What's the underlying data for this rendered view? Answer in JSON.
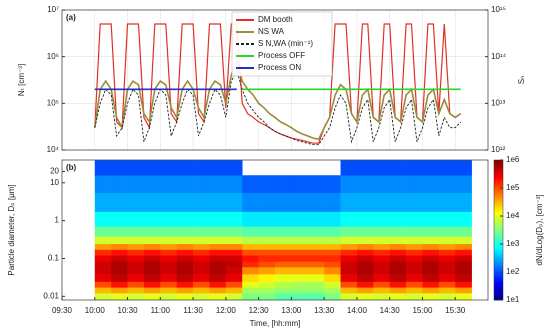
{
  "chart_data": [
    {
      "type": "line",
      "panel_label": "(a)",
      "ylabel": "Nₜ [cm⁻³]",
      "y2label": "Sₙ",
      "xlim": [
        "09:30",
        "16:00"
      ],
      "ylim": [
        10000,
        10000000
      ],
      "y2lim": [
        1000000000000,
        1000000000000000
      ],
      "log": true,
      "grid": true,
      "legend": "upper center",
      "yticks": [
        {
          "value": 10000,
          "label": "10⁴"
        },
        {
          "value": 100000,
          "label": "10⁵"
        },
        {
          "value": 1000000,
          "label": "10⁶"
        },
        {
          "value": 10000000,
          "label": "10⁷"
        }
      ],
      "y2ticks": [
        {
          "value": 1000000000000,
          "label": "10¹²"
        },
        {
          "value": 10000000000000,
          "label": "10¹³"
        },
        {
          "value": 100000000000000,
          "label": "10¹⁴"
        },
        {
          "value": 1000000000000000,
          "label": "10¹⁵"
        }
      ],
      "x": [
        "10:00",
        "10:05",
        "10:10",
        "10:15",
        "10:20",
        "10:25",
        "10:30",
        "10:35",
        "10:40",
        "10:45",
        "10:50",
        "10:55",
        "11:00",
        "11:05",
        "11:10",
        "11:15",
        "11:20",
        "11:25",
        "11:30",
        "11:35",
        "11:40",
        "11:45",
        "11:50",
        "11:55",
        "12:00",
        "12:05",
        "12:10",
        "12:15",
        "12:20",
        "12:25",
        "12:30",
        "12:35",
        "12:40",
        "12:45",
        "12:50",
        "12:55",
        "13:00",
        "13:05",
        "13:10",
        "13:15",
        "13:20",
        "13:25",
        "13:30",
        "13:35",
        "13:40",
        "13:45",
        "13:50",
        "13:55",
        "14:00",
        "14:05",
        "14:10",
        "14:15",
        "14:20",
        "14:25",
        "14:30",
        "14:35",
        "14:40",
        "14:45",
        "14:50",
        "14:55",
        "15:00",
        "15:05",
        "15:10",
        "15:15",
        "15:20",
        "15:25",
        "15:30",
        "15:35"
      ],
      "series": [
        {
          "name": "DM booth",
          "color": "#e03028",
          "width": 1.2,
          "values": [
            30000.0,
            5000000.0,
            5000000.0,
            5000000.0,
            40000.0,
            30000.0,
            5000000.0,
            5000000.0,
            5000000.0,
            50000.0,
            30000.0,
            5000000.0,
            5000000.0,
            5000000.0,
            60000.0,
            40000.0,
            5000000.0,
            5000000.0,
            5000000.0,
            60000.0,
            40000.0,
            5000000.0,
            5000000.0,
            5000000.0,
            80000.0,
            5000000.0,
            5000000.0,
            100000.0,
            60000.0,
            50000.0,
            40000.0,
            35000.0,
            30000.0,
            25000.0,
            22000.0,
            20000.0,
            18000.0,
            17000.0,
            16000.0,
            15000.0,
            14000.0,
            14000.0,
            30000.0,
            50000.0,
            5000000.0,
            5000000.0,
            5000000.0,
            60000.0,
            40000.0,
            5000000.0,
            5000000.0,
            50000.0,
            40000.0,
            5000000.0,
            5000000.0,
            50000.0,
            40000.0,
            5000000.0,
            5000000.0,
            50000.0,
            40000.0,
            5000000.0,
            5000000.0,
            60000.0,
            5000000.0,
            60000.0,
            50000.0,
            60000.0
          ]
        },
        {
          "name": "NS WA",
          "color": "#9c8a3a",
          "width": 1.6,
          "values": [
            30000.0,
            200000.0,
            300000.0,
            200000.0,
            50000.0,
            30000.0,
            200000.0,
            300000.0,
            250000.0,
            60000.0,
            40000.0,
            200000.0,
            300000.0,
            250000.0,
            80000.0,
            50000.0,
            200000.0,
            300000.0,
            200000.0,
            80000.0,
            50000.0,
            200000.0,
            300000.0,
            250000.0,
            100000.0,
            400000.0,
            800000.0,
            300000.0,
            200000.0,
            150000.0,
            100000.0,
            80000.0,
            60000.0,
            50000.0,
            40000.0,
            35000.0,
            30000.0,
            25000.0,
            22000.0,
            20000.0,
            18000.0,
            17000.0,
            30000.0,
            50000.0,
            150000.0,
            250000.0,
            200000.0,
            60000.0,
            40000.0,
            150000.0,
            200000.0,
            50000.0,
            40000.0,
            150000.0,
            200000.0,
            50000.0,
            40000.0,
            150000.0,
            200000.0,
            50000.0,
            40000.0,
            150000.0,
            200000.0,
            60000.0,
            120000.0,
            60000.0,
            50000.0,
            60000.0
          ]
        },
        {
          "name": "S N,WA (min⁻¹)",
          "color": "#222222",
          "width": 0.9,
          "dash": true,
          "axis": "y2",
          "values": [
            3000000000000.0,
            10000000000000.0,
            20000000000000.0,
            15000000000000.0,
            2000000000000.0,
            3000000000000.0,
            10000000000000.0,
            20000000000000.0,
            15000000000000.0,
            1500000000000.0,
            3000000000000.0,
            10000000000000.0,
            20000000000000.0,
            15000000000000.0,
            2000000000000.0,
            4000000000000.0,
            10000000000000.0,
            20000000000000.0,
            15000000000000.0,
            2000000000000.0,
            4000000000000.0,
            10000000000000.0,
            20000000000000.0,
            15000000000000.0,
            5000000000000.0,
            30000000000000.0,
            50000000000000.0,
            20000000000000.0,
            10000000000000.0,
            7000000000000.0,
            5000000000000.0,
            4000000000000.0,
            3000000000000.0,
            2500000000000.0,
            2200000000000.0,
            2000000000000.0,
            1800000000000.0,
            1600000000000.0,
            1500000000000.0,
            1400000000000.0,
            1300000000000.0,
            1300000000000.0,
            2000000000000.0,
            3000000000000.0,
            8000000000000.0,
            15000000000000.0,
            10000000000000.0,
            1500000000000.0,
            3000000000000.0,
            8000000000000.0,
            12000000000000.0,
            1500000000000.0,
            3000000000000.0,
            8000000000000.0,
            12000000000000.0,
            1500000000000.0,
            3000000000000.0,
            8000000000000.0,
            12000000000000.0,
            1500000000000.0,
            3000000000000.0,
            8000000000000.0,
            12000000000000.0,
            2000000000000.0,
            5000000000000.0,
            3000000000000.0,
            3000000000000.0,
            4000000000000.0
          ]
        },
        {
          "name": "Process OFF",
          "color": "#2ad62a",
          "width": 1.6,
          "values": [
            null,
            null,
            null,
            null,
            null,
            null,
            null,
            null,
            null,
            null,
            null,
            null,
            null,
            null,
            null,
            null,
            null,
            null,
            null,
            null,
            null,
            null,
            null,
            null,
            null,
            null,
            null,
            200000.0,
            200000.0,
            200000.0,
            200000.0,
            200000.0,
            200000.0,
            200000.0,
            200000.0,
            200000.0,
            200000.0,
            200000.0,
            200000.0,
            200000.0,
            200000.0,
            200000.0,
            200000.0,
            200000.0,
            200000.0,
            200000.0,
            200000.0,
            200000.0,
            200000.0,
            200000.0,
            200000.0,
            200000.0,
            200000.0,
            200000.0,
            200000.0,
            200000.0,
            200000.0,
            200000.0,
            200000.0,
            200000.0,
            200000.0,
            200000.0,
            200000.0,
            200000.0,
            200000.0,
            200000.0,
            200000.0,
            200000.0
          ]
        },
        {
          "name": "Process ON",
          "color": "#2430c0",
          "width": 1.6,
          "values": [
            200000.0,
            200000.0,
            200000.0,
            200000.0,
            200000.0,
            200000.0,
            200000.0,
            200000.0,
            200000.0,
            200000.0,
            200000.0,
            200000.0,
            200000.0,
            200000.0,
            200000.0,
            200000.0,
            200000.0,
            200000.0,
            200000.0,
            200000.0,
            200000.0,
            200000.0,
            200000.0,
            200000.0,
            200000.0,
            200000.0,
            200000.0,
            null,
            null,
            null,
            null,
            null,
            null,
            null,
            null,
            null,
            null,
            null,
            null,
            null,
            null,
            null,
            null,
            null,
            null,
            null,
            null,
            null,
            null,
            null,
            null,
            null,
            null,
            null,
            null,
            null,
            null,
            null,
            null,
            null,
            null,
            null,
            null,
            null,
            null,
            null,
            null,
            null
          ]
        }
      ]
    },
    {
      "type": "heatmap",
      "panel_label": "(b)",
      "xlabel": "Time, [hh:mm]",
      "ylabel": "Particle diameter, Dₚ [μm]",
      "colorbar_label": "dN/dLog(Dₚ), [cm⁻³]",
      "xlim": [
        "09:30",
        "16:00"
      ],
      "xticks": [
        "09:30",
        "10:00",
        "10:30",
        "11:00",
        "11:30",
        "12:00",
        "12:30",
        "13:00",
        "13:30",
        "14:00",
        "14:30",
        "15:00",
        "15:30"
      ],
      "ylim": [
        0.008,
        40
      ],
      "yticks": [
        0.01,
        0.1,
        1,
        10,
        20
      ],
      "log": true,
      "colormap": "jet",
      "clim": [
        10,
        1000000
      ],
      "cticks": [
        {
          "value": 10,
          "label": "1e1"
        },
        {
          "value": 100,
          "label": "1e2"
        },
        {
          "value": 1000,
          "label": "1e3"
        },
        {
          "value": 10000,
          "label": "1e4"
        },
        {
          "value": 100000,
          "label": "1e5"
        },
        {
          "value": 1000000,
          "label": "1e6"
        }
      ],
      "x": [
        "10:00",
        "10:15",
        "10:30",
        "10:45",
        "11:00",
        "11:15",
        "11:30",
        "11:45",
        "12:00",
        "12:15",
        "12:30",
        "12:45",
        "13:00",
        "13:15",
        "13:30",
        "13:45",
        "14:00",
        "14:15",
        "14:30",
        "14:45",
        "15:00",
        "15:15",
        "15:30"
      ],
      "y": [
        0.01,
        0.015,
        0.02,
        0.03,
        0.05,
        0.07,
        0.1,
        0.15,
        0.2,
        0.3,
        0.5,
        1,
        3,
        10,
        25
      ],
      "z": [
        [
          8000.0,
          10000.0,
          8000.0,
          10000.0,
          8000.0,
          10000.0,
          8000.0,
          10000.0,
          8000.0,
          3000.0,
          3000.0,
          2000.0,
          2000.0,
          2000.0,
          3000.0,
          8000.0,
          10000.0,
          8000.0,
          10000.0,
          8000.0,
          10000.0,
          8000.0,
          10000.0
        ],
        [
          30000.0,
          40000.0,
          30000.0,
          40000.0,
          30000.0,
          40000.0,
          30000.0,
          40000.0,
          30000.0,
          5000.0,
          5000.0,
          4000.0,
          4000.0,
          4000.0,
          5000.0,
          30000.0,
          40000.0,
          30000.0,
          40000.0,
          30000.0,
          40000.0,
          30000.0,
          40000.0
        ],
        [
          100000.0,
          200000.0,
          100000.0,
          200000.0,
          100000.0,
          200000.0,
          100000.0,
          200000.0,
          100000.0,
          10000.0,
          8000.0,
          6000.0,
          5000.0,
          5000.0,
          8000.0,
          100000.0,
          200000.0,
          100000.0,
          200000.0,
          100000.0,
          200000.0,
          100000.0,
          200000.0
        ],
        [
          300000.0,
          500000.0,
          300000.0,
          500000.0,
          300000.0,
          500000.0,
          300000.0,
          500000.0,
          300000.0,
          20000.0,
          15000.0,
          10000.0,
          10000.0,
          10000.0,
          20000.0,
          300000.0,
          500000.0,
          300000.0,
          500000.0,
          300000.0,
          500000.0,
          300000.0,
          500000.0
        ],
        [
          400000.0,
          600000.0,
          400000.0,
          600000.0,
          400000.0,
          600000.0,
          400000.0,
          600000.0,
          400000.0,
          50000.0,
          40000.0,
          30000.0,
          30000.0,
          30000.0,
          50000.0,
          400000.0,
          600000.0,
          400000.0,
          600000.0,
          400000.0,
          600000.0,
          400000.0,
          600000.0
        ],
        [
          400000.0,
          600000.0,
          400000.0,
          600000.0,
          400000.0,
          600000.0,
          400000.0,
          600000.0,
          500000.0,
          150000.0,
          100000.0,
          80000.0,
          80000.0,
          80000.0,
          100000.0,
          400000.0,
          600000.0,
          400000.0,
          600000.0,
          400000.0,
          600000.0,
          400000.0,
          600000.0
        ],
        [
          300000.0,
          400000.0,
          300000.0,
          400000.0,
          300000.0,
          400000.0,
          300000.0,
          400000.0,
          400000.0,
          200000.0,
          150000.0,
          150000.0,
          150000.0,
          150000.0,
          150000.0,
          300000.0,
          400000.0,
          300000.0,
          400000.0,
          300000.0,
          400000.0,
          300000.0,
          400000.0
        ],
        [
          150000.0,
          200000.0,
          150000.0,
          200000.0,
          150000.0,
          200000.0,
          150000.0,
          200000.0,
          200000.0,
          100000.0,
          100000.0,
          100000.0,
          100000.0,
          100000.0,
          100000.0,
          150000.0,
          200000.0,
          150000.0,
          200000.0,
          150000.0,
          200000.0,
          150000.0,
          200000.0
        ],
        [
          40000.0,
          50000.0,
          40000.0,
          50000.0,
          40000.0,
          50000.0,
          40000.0,
          50000.0,
          50000.0,
          30000.0,
          30000.0,
          30000.0,
          30000.0,
          30000.0,
          30000.0,
          40000.0,
          50000.0,
          40000.0,
          50000.0,
          40000.0,
          50000.0,
          40000.0,
          50000.0
        ],
        [
          8000.0,
          8000.0,
          8000.0,
          8000.0,
          8000.0,
          8000.0,
          8000.0,
          8000.0,
          8000.0,
          6000.0,
          6000.0,
          6000.0,
          6000.0,
          6000.0,
          6000.0,
          8000.0,
          8000.0,
          8000.0,
          8000.0,
          8000.0,
          8000.0,
          8000.0,
          8000.0
        ],
        [
          2500.0,
          2500.0,
          2500.0,
          2500.0,
          2500.0,
          2500.0,
          2500.0,
          2500.0,
          2500.0,
          2000.0,
          2000.0,
          2000.0,
          2000.0,
          2000.0,
          2000.0,
          2500.0,
          2500.0,
          2500.0,
          2500.0,
          2500.0,
          2500.0,
          2500.0,
          2500.0
        ],
        [
          800.0,
          800.0,
          800.0,
          800.0,
          800.0,
          800.0,
          800.0,
          800.0,
          800.0,
          600.0,
          600.0,
          600.0,
          600.0,
          600.0,
          600.0,
          800.0,
          800.0,
          800.0,
          800.0,
          800.0,
          800.0,
          800.0,
          800.0
        ],
        [
          300.0,
          300.0,
          300.0,
          300.0,
          300.0,
          300.0,
          300.0,
          300.0,
          300.0,
          200.0,
          200.0,
          200.0,
          200.0,
          200.0,
          200.0,
          300.0,
          300.0,
          300.0,
          300.0,
          300.0,
          300.0,
          300.0,
          300.0
        ],
        [
          200.0,
          200.0,
          200.0,
          200.0,
          200.0,
          200.0,
          200.0,
          200.0,
          200.0,
          120.0,
          120.0,
          120.0,
          120.0,
          120.0,
          120.0,
          200.0,
          200.0,
          200.0,
          200.0,
          200.0,
          200.0,
          200.0,
          200.0
        ],
        [
          100.0,
          100.0,
          100.0,
          100.0,
          100.0,
          100.0,
          100.0,
          100.0,
          100.0,
          null,
          null,
          null,
          null,
          null,
          null,
          100.0,
          100.0,
          100.0,
          100.0,
          100.0,
          100.0,
          100.0,
          100.0
        ]
      ]
    }
  ]
}
